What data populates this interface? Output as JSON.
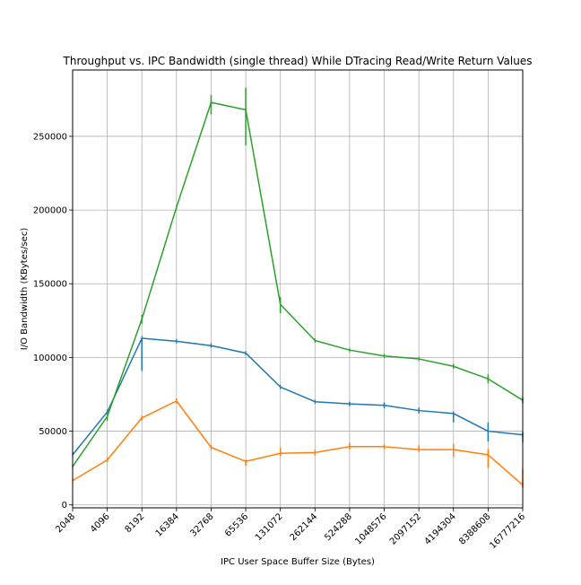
{
  "chart_data": {
    "type": "line",
    "title": "Throughput vs. IPC Bandwidth (single thread) While DTracing Read/Write Return Values",
    "xlabel": "IPC User Space Buffer Size (Bytes)",
    "ylabel": "I/O Bandwidth (KBytes/sec)",
    "x_scale": "log2",
    "categories": [
      "2048",
      "4096",
      "8192",
      "16384",
      "32768",
      "65536",
      "131072",
      "262144",
      "524288",
      "1048576",
      "2097152",
      "4194304",
      "8388608",
      "16777216"
    ],
    "ylim": [
      -2000,
      295000
    ],
    "yticks": [
      0,
      50000,
      100000,
      150000,
      200000,
      250000
    ],
    "grid": true,
    "series": [
      {
        "color": "#1f77b4",
        "values": [
          34000,
          63000,
          113000,
          111000,
          108000,
          103000,
          80000,
          70000,
          68500,
          67500,
          64000,
          62000,
          50000,
          47500
        ],
        "err": [
          [
            0,
            0
          ],
          [
            1500,
            1500
          ],
          [
            22000,
            0
          ],
          [
            0,
            0
          ],
          [
            1000,
            1000
          ],
          [
            0,
            0
          ],
          [
            0,
            0
          ],
          [
            0,
            0
          ],
          [
            1500,
            1500
          ],
          [
            2000,
            2000
          ],
          [
            2000,
            2000
          ],
          [
            6000,
            0
          ],
          [
            7000,
            6000
          ],
          [
            5000,
            2000
          ]
        ]
      },
      {
        "color": "#ff7f0e",
        "values": [
          16500,
          30500,
          59000,
          70500,
          39000,
          29500,
          35000,
          35500,
          39500,
          39500,
          37500,
          37500,
          34000,
          13500
        ],
        "err": [
          [
            0,
            0
          ],
          [
            1500,
            1500
          ],
          [
            1500,
            1500
          ],
          [
            1500,
            1500
          ],
          [
            0,
            0
          ],
          [
            3000,
            0
          ],
          [
            2000,
            4000
          ],
          [
            2000,
            2000
          ],
          [
            2000,
            2500
          ],
          [
            1500,
            1500
          ],
          [
            1500,
            3000
          ],
          [
            5000,
            4000
          ],
          [
            9000,
            4000
          ],
          [
            2000,
            11000
          ]
        ]
      },
      {
        "color": "#2ca02c",
        "values": [
          26000,
          60000,
          126000,
          202000,
          273000,
          268000,
          136000,
          111500,
          105000,
          101000,
          99000,
          94000,
          85500,
          71000
        ],
        "err": [
          [
            0,
            0
          ],
          [
            3000,
            3000
          ],
          [
            3000,
            3000
          ],
          [
            0,
            0
          ],
          [
            8000,
            5000
          ],
          [
            24000,
            15000
          ],
          [
            6000,
            5000
          ],
          [
            0,
            0
          ],
          [
            0,
            0
          ],
          [
            0,
            0
          ],
          [
            0,
            0
          ],
          [
            1500,
            1500
          ],
          [
            3000,
            3000
          ],
          [
            2000,
            2000
          ]
        ]
      }
    ]
  }
}
